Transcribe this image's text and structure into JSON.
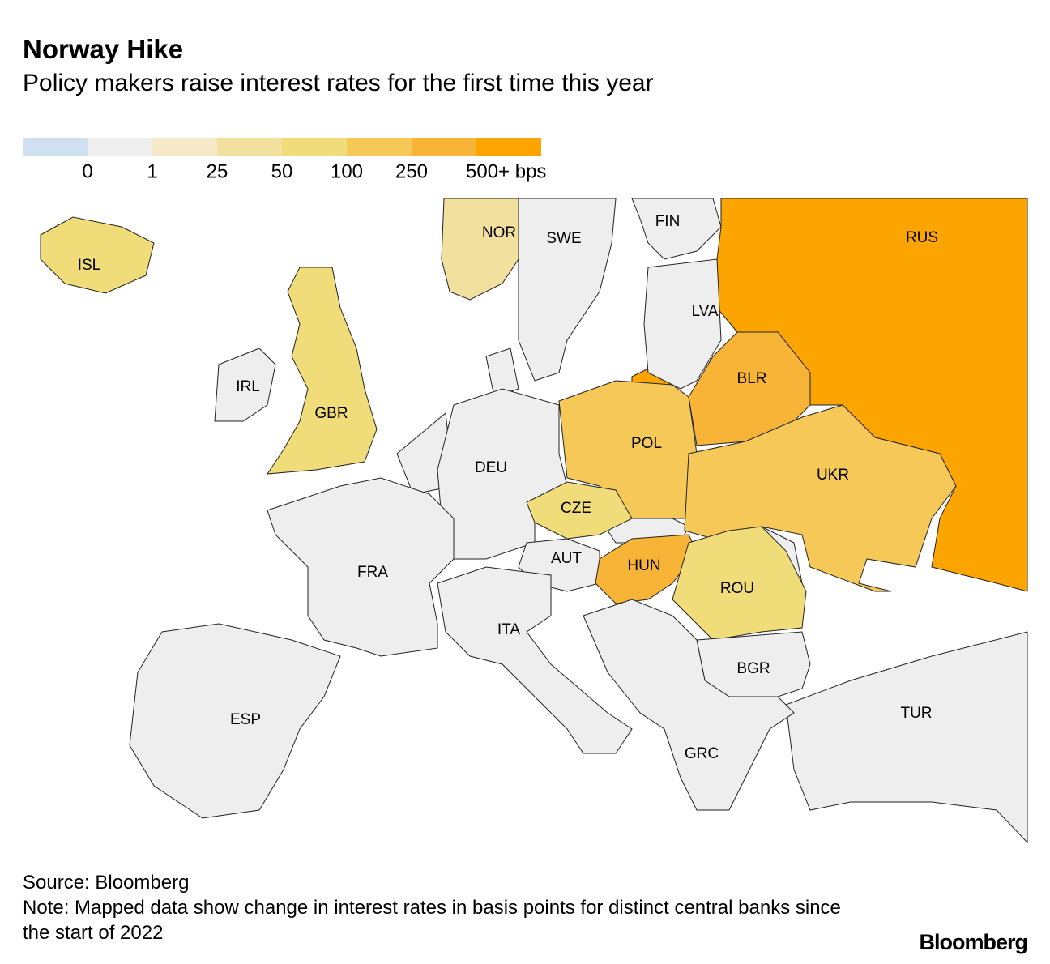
{
  "header": {
    "title": "Norway Hike",
    "subtitle": "Policy makers raise interest rates for the first time this year"
  },
  "legend": {
    "colors": [
      "#cfe0f2",
      "#eeeeee",
      "#f5e9c8",
      "#f2e09e",
      "#f0dc78",
      "#f5c858",
      "#f8b436",
      "#fca400"
    ],
    "labels": [
      "0",
      "1",
      "25",
      "50",
      "100",
      "250",
      "500+ bps"
    ]
  },
  "map": {
    "labels": [
      {
        "text": "ISL",
        "color": "#f0dc78"
      },
      {
        "text": "NOR",
        "color": "#f2e09e"
      },
      {
        "text": "SWE",
        "color": "#eeeeee"
      },
      {
        "text": "FIN",
        "color": "#eeeeee"
      },
      {
        "text": "RUS",
        "color": "#fca400"
      },
      {
        "text": "LVA",
        "color": "#eeeeee"
      },
      {
        "text": "BLR",
        "color": "#f8b436"
      },
      {
        "text": "IRL",
        "color": "#eeeeee"
      },
      {
        "text": "GBR",
        "color": "#f0dc78"
      },
      {
        "text": "POL",
        "color": "#f5c858"
      },
      {
        "text": "DEU",
        "color": "#eeeeee"
      },
      {
        "text": "UKR",
        "color": "#f5c858"
      },
      {
        "text": "CZE",
        "color": "#f0dc78"
      },
      {
        "text": "FRA",
        "color": "#eeeeee"
      },
      {
        "text": "AUT",
        "color": "#eeeeee"
      },
      {
        "text": "HUN",
        "color": "#f8b436"
      },
      {
        "text": "ROU",
        "color": "#f0dc78"
      },
      {
        "text": "ITA",
        "color": "#eeeeee"
      },
      {
        "text": "BGR",
        "color": "#eeeeee"
      },
      {
        "text": "TUR",
        "color": "#eeeeee"
      },
      {
        "text": "ESP",
        "color": "#eeeeee"
      },
      {
        "text": "GRC",
        "color": "#eeeeee"
      }
    ]
  },
  "footer": {
    "source": "Source: Bloomberg",
    "note": "Note: Mapped data show change in interest rates in basis points for distinct central banks since the start of 2022",
    "logo": "Bloomberg"
  }
}
